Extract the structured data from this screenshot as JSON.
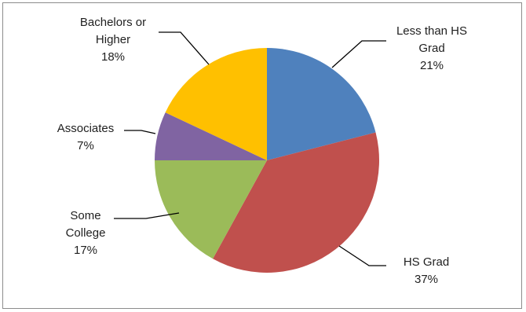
{
  "chart_data": {
    "type": "pie",
    "categories": [
      "Less than HS Grad",
      "HS Grad",
      "Some College",
      "Associates",
      "Bachelors or Higher"
    ],
    "values": [
      21,
      37,
      17,
      7,
      18
    ],
    "labels": [
      {
        "lines": [
          "Less than HS",
          "Grad"
        ],
        "pct": "21%"
      },
      {
        "lines": [
          "HS Grad"
        ],
        "pct": "37%"
      },
      {
        "lines": [
          "Some",
          "College"
        ],
        "pct": "17%"
      },
      {
        "lines": [
          "Associates"
        ],
        "pct": "7%"
      },
      {
        "lines": [
          "Bachelors or",
          "Higher"
        ],
        "pct": "18%"
      }
    ],
    "colors": [
      "#4f81bd",
      "#c0504d",
      "#9bbb59",
      "#8064a2",
      "#ffc000"
    ],
    "legend": "none"
  }
}
